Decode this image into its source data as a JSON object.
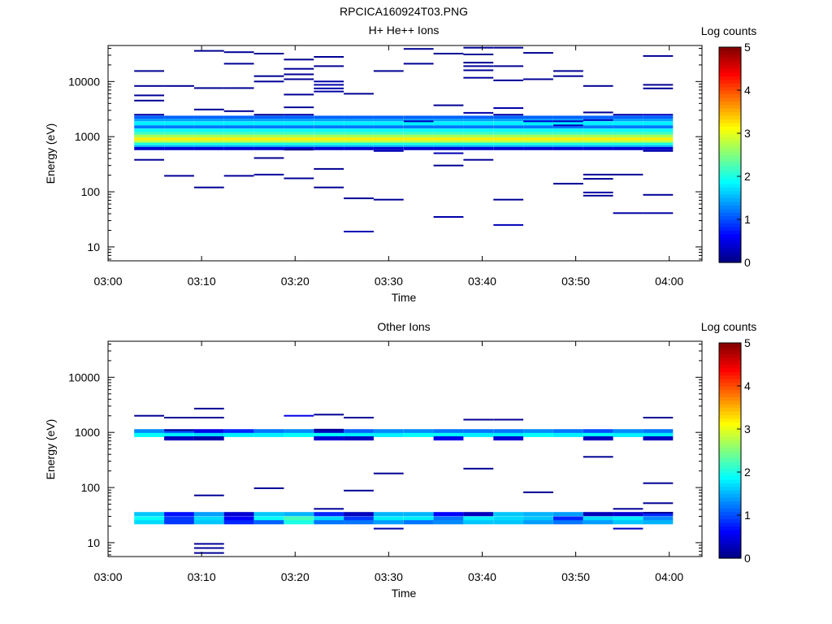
{
  "page_title": "RPCICA160924T03.PNG",
  "colorbar": {
    "label": "Log counts",
    "min": 0,
    "max": 5,
    "ticks": [
      "0",
      "1",
      "2",
      "3",
      "4",
      "5"
    ]
  },
  "chart_data": [
    {
      "type": "heatmap",
      "title": "H+ He++ Ions",
      "xlabel": "Time",
      "ylabel": "Energy (eV)",
      "x_ticks": [
        "03:00",
        "03:10",
        "03:20",
        "03:30",
        "03:40",
        "03:50",
        "04:00"
      ],
      "xlim_minutes": [
        0,
        63.5
      ],
      "y_ticks": [
        "10",
        "100",
        "1000",
        "10000"
      ],
      "y_scale": "log",
      "ylim": [
        5.6,
        45000
      ],
      "time_bin_start_minutes": [
        2.8,
        6.0,
        9.2,
        12.4,
        15.6,
        18.8,
        22.0,
        25.2,
        28.4,
        31.6,
        34.8,
        38.0,
        41.2,
        44.4,
        47.6,
        50.8,
        54.0,
        57.2
      ],
      "time_bin_width_minutes": 3.2,
      "band_color_value": {
        "2250": 1.1,
        "2000": 1.4,
        "1750": 1.8,
        "1500": 1.2,
        "1300": 1.9,
        "1150": 2.2,
        "1000": 2.7,
        "900": 3.2,
        "820": 2.8,
        "740": 2.0,
        "680": 1.5,
        "610": 0.4
      },
      "sparse_points": [
        [
          0,
          15500,
          0.1
        ],
        [
          0,
          8300,
          0.1
        ],
        [
          0,
          5600,
          0.1
        ],
        [
          0,
          4500,
          0.1
        ],
        [
          0,
          2500,
          0.2
        ],
        [
          0,
          380,
          0.1
        ],
        [
          1,
          8300,
          0.1
        ],
        [
          1,
          195,
          0.1
        ],
        [
          2,
          36000,
          0.1
        ],
        [
          2,
          7600,
          0.1
        ],
        [
          2,
          3100,
          0.1
        ],
        [
          2,
          120,
          0.1
        ],
        [
          3,
          34000,
          0.1
        ],
        [
          3,
          21000,
          0.1
        ],
        [
          3,
          7600,
          0.1
        ],
        [
          3,
          2900,
          0.1
        ],
        [
          3,
          195,
          0.1
        ],
        [
          4,
          32000,
          0.1
        ],
        [
          4,
          12500,
          0.1
        ],
        [
          4,
          10000,
          0.1
        ],
        [
          4,
          2500,
          0.1
        ],
        [
          4,
          410,
          0.1
        ],
        [
          4,
          205,
          0.15
        ],
        [
          5,
          25000,
          0.1
        ],
        [
          5,
          17000,
          0.1
        ],
        [
          5,
          13500,
          0.1
        ],
        [
          5,
          11000,
          0.1
        ],
        [
          5,
          5800,
          0.1
        ],
        [
          5,
          3400,
          0.1
        ],
        [
          5,
          2500,
          0.2
        ],
        [
          5,
          580,
          0.1
        ],
        [
          5,
          175,
          0.1
        ],
        [
          6,
          28000,
          0.1
        ],
        [
          6,
          19000,
          0.1
        ],
        [
          6,
          10000,
          0.2
        ],
        [
          6,
          8700,
          0.2
        ],
        [
          6,
          7500,
          0.2
        ],
        [
          6,
          6600,
          0.2
        ],
        [
          6,
          260,
          0.1
        ],
        [
          6,
          120,
          0.1
        ],
        [
          7,
          6000,
          0.1
        ],
        [
          7,
          76,
          0.1
        ],
        [
          7,
          19,
          0.25
        ],
        [
          8,
          15500,
          0.1
        ],
        [
          8,
          550,
          0.25
        ],
        [
          8,
          72,
          0.1
        ],
        [
          9,
          39000,
          0.1
        ],
        [
          9,
          21000,
          0.1
        ],
        [
          9,
          1900,
          0.3
        ],
        [
          10,
          32000,
          0.1
        ],
        [
          10,
          3700,
          0.1
        ],
        [
          10,
          500,
          0.25
        ],
        [
          10,
          300,
          0.1
        ],
        [
          10,
          35,
          0.2
        ],
        [
          11,
          41000,
          0.1
        ],
        [
          11,
          31000,
          0.1
        ],
        [
          11,
          22000,
          0.1
        ],
        [
          11,
          19000,
          0.1
        ],
        [
          11,
          16000,
          0.1
        ],
        [
          11,
          11700,
          0.15
        ],
        [
          11,
          2700,
          0.2
        ],
        [
          11,
          380,
          0.1
        ],
        [
          12,
          41000,
          0.1
        ],
        [
          12,
          19000,
          0.1
        ],
        [
          12,
          10500,
          0.1
        ],
        [
          12,
          3300,
          0.2
        ],
        [
          12,
          2500,
          0.2
        ],
        [
          12,
          72,
          0.1
        ],
        [
          12,
          25,
          0.3
        ],
        [
          13,
          33000,
          0.1
        ],
        [
          13,
          11000,
          0.1
        ],
        [
          13,
          1900,
          0.4
        ],
        [
          14,
          15500,
          0.1
        ],
        [
          14,
          12500,
          0.1
        ],
        [
          14,
          1900,
          0.3
        ],
        [
          14,
          1600,
          0.3
        ],
        [
          14,
          140,
          0.1
        ],
        [
          15,
          8300,
          0.1
        ],
        [
          15,
          2750,
          0.1
        ],
        [
          15,
          2000,
          0.3
        ],
        [
          15,
          205,
          0.1
        ],
        [
          15,
          172,
          0.1
        ],
        [
          15,
          97,
          0.2
        ],
        [
          15,
          85,
          0.1
        ],
        [
          16,
          2500,
          0.2
        ],
        [
          16,
          205,
          0.1
        ],
        [
          16,
          41,
          0.2
        ],
        [
          17,
          29000,
          0.1
        ],
        [
          17,
          8700,
          0.1
        ],
        [
          17,
          7500,
          0.1
        ],
        [
          17,
          2500,
          0.3
        ],
        [
          17,
          550,
          0.2
        ],
        [
          17,
          88,
          0.1
        ],
        [
          17,
          41,
          0.2
        ]
      ]
    },
    {
      "type": "heatmap",
      "title": "Other Ions",
      "xlabel": "Time",
      "ylabel": "Energy (eV)",
      "x_ticks": [
        "03:00",
        "03:10",
        "03:20",
        "03:30",
        "03:40",
        "03:50",
        "04:00"
      ],
      "xlim_minutes": [
        0,
        63.5
      ],
      "y_ticks": [
        "10",
        "100",
        "1000",
        "10000"
      ],
      "y_scale": "log",
      "ylim": [
        5.6,
        45000
      ],
      "time_bin_start_minutes": [
        2.8,
        6.0,
        9.2,
        12.4,
        15.6,
        18.8,
        22.0,
        25.2,
        28.4,
        31.6,
        34.8,
        38.0,
        41.2,
        44.4,
        47.6,
        50.8,
        54.0,
        57.2
      ],
      "time_bin_width_minutes": 3.2,
      "rows": [
        {
          "energy": 1050,
          "values": [
            1.3,
            1.0,
            0.5,
            0.8,
            1.2,
            1.3,
            0.3,
            1.1,
            1.3,
            1.3,
            1.2,
            1.2,
            1.2,
            1.3,
            1.2,
            1.0,
            1.3,
            1.2
          ]
        },
        {
          "energy": 900,
          "values": [
            1.9,
            1.8,
            1.7,
            1.8,
            1.8,
            1.9,
            1.9,
            1.8,
            1.8,
            1.9,
            1.9,
            1.8,
            1.8,
            1.9,
            1.8,
            1.9,
            1.8,
            1.8
          ]
        },
        {
          "energy": 780,
          "values": [
            null,
            0.3,
            0.2,
            null,
            null,
            null,
            0.4,
            0.3,
            null,
            null,
            0.5,
            null,
            0.4,
            null,
            null,
            0.3,
            null,
            0.3
          ]
        },
        {
          "energy": 33,
          "values": [
            1.6,
            0.7,
            1.4,
            0.4,
            1.6,
            1.5,
            0.8,
            0.3,
            1.5,
            1.5,
            0.6,
            0.3,
            1.6,
            1.5,
            1.4,
            0.3,
            0.4,
            0.8
          ]
        },
        {
          "energy": 27.5,
          "values": [
            1.9,
            0.9,
            1.7,
            0.6,
            1.9,
            2.2,
            1.7,
            0.9,
            1.8,
            1.8,
            1.2,
            1.8,
            1.7,
            1.6,
            0.8,
            1.7,
            1.8,
            1.3
          ]
        },
        {
          "energy": 23.5,
          "values": [
            1.7,
            0.9,
            1.6,
            0.8,
            1.1,
            2.0,
            1.2,
            1.2,
            1.4,
            1.2,
            1.3,
            1.6,
            1.6,
            1.4,
            1.2,
            1.4,
            1.6,
            1.5
          ]
        }
      ],
      "sparse_points": [
        [
          0,
          2000,
          0.1
        ],
        [
          1,
          1850,
          0.1
        ],
        [
          1,
          1100,
          0.1
        ],
        [
          2,
          2700,
          0.1
        ],
        [
          2,
          1850,
          0.1
        ],
        [
          2,
          72,
          0.1
        ],
        [
          2,
          9.5,
          0.1
        ],
        [
          2,
          8.0,
          0.1
        ],
        [
          2,
          6.5,
          0.1
        ],
        [
          4,
          97,
          0.1
        ],
        [
          5,
          2000,
          0.5
        ],
        [
          6,
          2100,
          0.1
        ],
        [
          6,
          1120,
          0.1
        ],
        [
          6,
          41,
          0.1
        ],
        [
          7,
          1850,
          0.1
        ],
        [
          7,
          88,
          0.1
        ],
        [
          8,
          180,
          0.1
        ],
        [
          8,
          18,
          0.2
        ],
        [
          11,
          220,
          0.1
        ],
        [
          11,
          1700,
          0.1
        ],
        [
          12,
          1700,
          0.1
        ],
        [
          13,
          82,
          0.1
        ],
        [
          15,
          360,
          0.1
        ],
        [
          16,
          41,
          0.1
        ],
        [
          16,
          18,
          0.3
        ],
        [
          17,
          1850,
          0.1
        ],
        [
          17,
          120,
          0.1
        ],
        [
          17,
          52,
          0.1
        ],
        [
          17,
          35,
          0.1
        ]
      ]
    }
  ]
}
